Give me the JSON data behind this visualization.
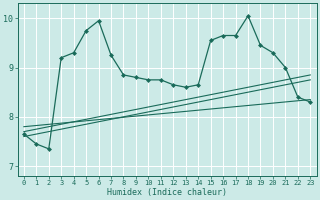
{
  "xlabel": "Humidex (Indice chaleur)",
  "ylabel": "",
  "xlim": [
    -0.5,
    23.5
  ],
  "ylim": [
    6.8,
    10.3
  ],
  "yticks": [
    7,
    8,
    9,
    10
  ],
  "xticks": [
    0,
    1,
    2,
    3,
    4,
    5,
    6,
    7,
    8,
    9,
    10,
    11,
    12,
    13,
    14,
    15,
    16,
    17,
    18,
    19,
    20,
    21,
    22,
    23
  ],
  "bg_color": "#cceae7",
  "line_color": "#1a6b5a",
  "grid_color": "#ffffff",
  "series1_x": [
    0,
    1,
    2,
    3,
    4,
    5,
    6,
    7,
    8,
    9,
    10,
    11,
    12,
    13,
    14,
    15,
    16,
    17,
    18,
    19,
    20,
    21,
    22,
    23
  ],
  "series1_y": [
    7.65,
    7.45,
    7.35,
    9.2,
    9.3,
    9.75,
    9.95,
    9.25,
    8.85,
    8.8,
    8.75,
    8.75,
    8.65,
    8.6,
    8.65,
    9.55,
    9.65,
    9.65,
    10.05,
    9.45,
    9.3,
    9.0,
    8.4,
    8.3
  ],
  "trend1_x": [
    0,
    23
  ],
  "trend1_y": [
    7.6,
    8.75
  ],
  "trend2_x": [
    0,
    23
  ],
  "trend2_y": [
    7.7,
    8.85
  ],
  "trend3_x": [
    0,
    23
  ],
  "trend3_y": [
    7.8,
    8.35
  ]
}
